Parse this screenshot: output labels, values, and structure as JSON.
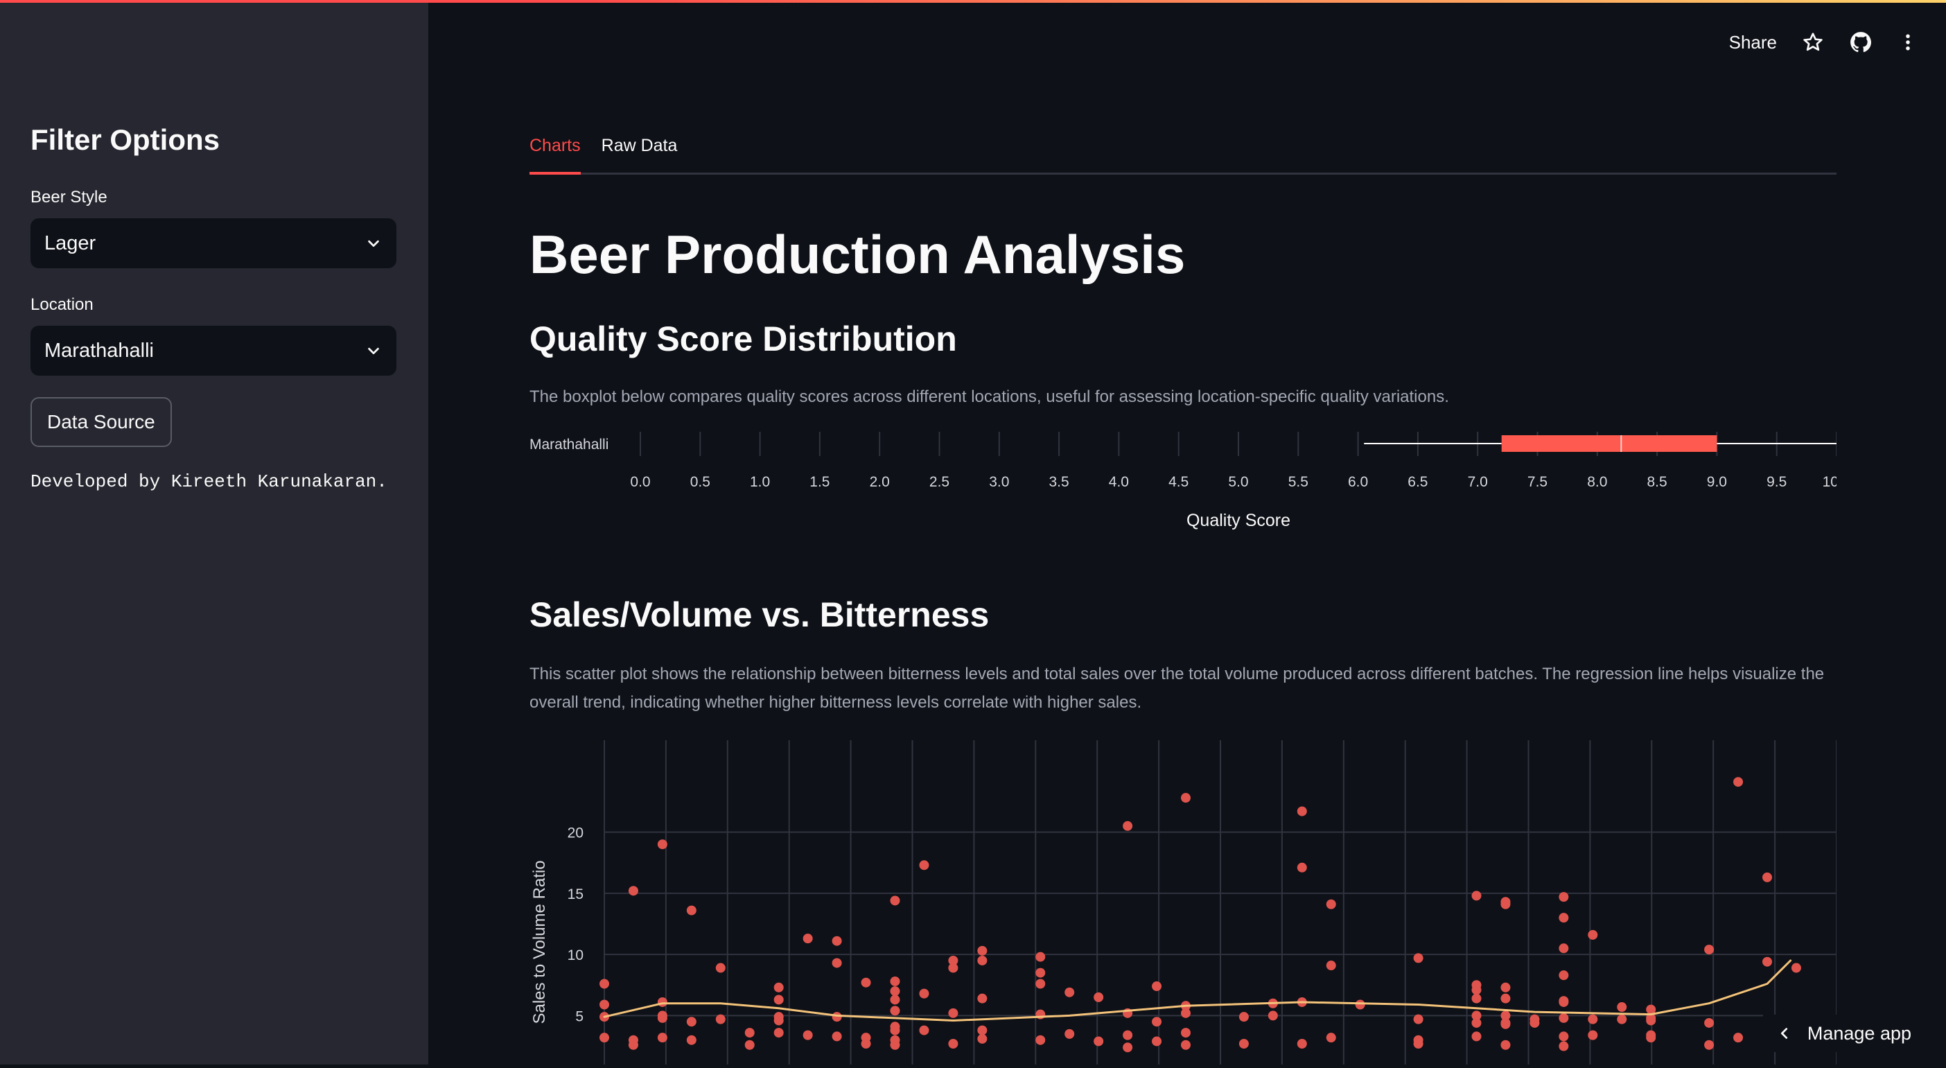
{
  "sidebar": {
    "title": "Filter Options",
    "beer_style_label": "Beer Style",
    "beer_style_value": "Lager",
    "location_label": "Location",
    "location_value": "Marathahalli",
    "data_source_button": "Data Source",
    "developer_note": "Developed by Kireeth Karunakaran."
  },
  "header": {
    "share_label": "Share",
    "icons": [
      "star-icon",
      "github-icon",
      "more-vert-icon"
    ]
  },
  "tabs": [
    {
      "label": "Charts",
      "active": true
    },
    {
      "label": "Raw Data",
      "active": false
    }
  ],
  "main": {
    "title": "Beer Production Analysis",
    "quality_section_title": "Quality Score Distribution",
    "quality_caption": "The boxplot below compares quality scores across different locations, useful for assessing location-specific quality variations.",
    "scatter_section_title": "Sales/Volume vs. Bitterness",
    "scatter_caption": "This scatter plot shows the relationship between bitterness levels and total sales over the total volume produced across different batches. The regression line helps visualize the overall trend, indicating whether higher bitterness levels correlate with higher sales."
  },
  "footer": {
    "manage_label": "Manage app"
  },
  "colors": {
    "accent": "#ff4b4b",
    "box_fill": "#ff5a4f",
    "point": "#e0544e",
    "trend": "#f4c37a",
    "grid": "#31333f"
  },
  "chart_data": [
    {
      "type": "box",
      "category": "Marathahalli",
      "xlabel": "Quality Score",
      "xlim": [
        0,
        10
      ],
      "xticks": [
        0,
        0.5,
        1,
        1.5,
        2,
        2.5,
        3,
        3.5,
        4,
        4.5,
        5,
        5.5,
        6,
        6.5,
        7,
        7.5,
        8,
        8.5,
        9,
        9.5,
        10
      ],
      "xtick_labels": [
        "0.0",
        "0.5",
        "1.0",
        "1.5",
        "2.0",
        "2.5",
        "3.0",
        "3.5",
        "4.0",
        "4.5",
        "5.0",
        "5.5",
        "6.0",
        "6.5",
        "7.0",
        "7.5",
        "8.0",
        "8.5",
        "9.0",
        "9.5",
        "10.0"
      ],
      "whisker_low": 6.05,
      "q1": 7.2,
      "median": 8.2,
      "q3": 9.0,
      "whisker_high": 10.0
    },
    {
      "type": "scatter",
      "ylabel": "Sales to Volume Ratio",
      "ylim": [
        1,
        24
      ],
      "yticks": [
        5,
        10,
        15,
        20
      ],
      "xlim": [
        0,
        20
      ],
      "x_gridlines": 21,
      "points": [
        [
          0,
          7.6
        ],
        [
          0,
          5.9
        ],
        [
          0,
          4.9
        ],
        [
          0,
          3.2
        ],
        [
          0.5,
          15.2
        ],
        [
          0.5,
          3.0
        ],
        [
          0.5,
          2.6
        ],
        [
          1,
          19.0
        ],
        [
          1,
          6.1
        ],
        [
          1,
          5.0
        ],
        [
          1,
          4.8
        ],
        [
          1,
          3.2
        ],
        [
          1.5,
          13.6
        ],
        [
          1.5,
          4.5
        ],
        [
          1.5,
          3.0
        ],
        [
          2,
          8.9
        ],
        [
          2,
          4.7
        ],
        [
          2.5,
          3.6
        ],
        [
          2.5,
          2.6
        ],
        [
          3,
          7.3
        ],
        [
          3,
          6.3
        ],
        [
          3,
          4.9
        ],
        [
          3,
          4.6
        ],
        [
          3,
          3.6
        ],
        [
          3.5,
          11.3
        ],
        [
          3.5,
          3.4
        ],
        [
          4,
          11.1
        ],
        [
          4,
          9.3
        ],
        [
          4,
          4.9
        ],
        [
          4,
          3.3
        ],
        [
          4.5,
          7.7
        ],
        [
          4.5,
          3.2
        ],
        [
          4.5,
          2.7
        ],
        [
          5,
          14.4
        ],
        [
          5,
          7.8
        ],
        [
          5,
          7.0
        ],
        [
          5,
          6.3
        ],
        [
          5,
          5.4
        ],
        [
          5,
          4.1
        ],
        [
          5,
          3.8
        ],
        [
          5,
          3.0
        ],
        [
          5,
          2.6
        ],
        [
          5.5,
          17.3
        ],
        [
          5.5,
          6.8
        ],
        [
          5.5,
          3.8
        ],
        [
          6,
          9.5
        ],
        [
          6,
          8.9
        ],
        [
          6,
          5.2
        ],
        [
          6,
          2.7
        ],
        [
          6.5,
          10.3
        ],
        [
          6.5,
          9.5
        ],
        [
          6.5,
          6.4
        ],
        [
          6.5,
          3.8
        ],
        [
          6.5,
          3.1
        ],
        [
          7.5,
          9.8
        ],
        [
          7.5,
          8.5
        ],
        [
          7.5,
          7.6
        ],
        [
          7.5,
          5.1
        ],
        [
          7.5,
          3.0
        ],
        [
          8,
          6.9
        ],
        [
          8,
          3.5
        ],
        [
          8.5,
          6.5
        ],
        [
          8.5,
          2.9
        ],
        [
          9,
          20.5
        ],
        [
          9,
          5.2
        ],
        [
          9,
          3.4
        ],
        [
          9,
          2.4
        ],
        [
          9.5,
          7.4
        ],
        [
          9.5,
          4.5
        ],
        [
          9.5,
          2.9
        ],
        [
          10,
          22.8
        ],
        [
          10,
          5.8
        ],
        [
          10,
          5.2
        ],
        [
          10,
          3.6
        ],
        [
          10,
          2.6
        ],
        [
          11,
          4.9
        ],
        [
          11,
          2.7
        ],
        [
          11.5,
          6.0
        ],
        [
          11.5,
          5.0
        ],
        [
          12,
          21.7
        ],
        [
          12,
          17.1
        ],
        [
          12,
          6.1
        ],
        [
          12,
          2.7
        ],
        [
          12.5,
          14.1
        ],
        [
          12.5,
          9.1
        ],
        [
          12.5,
          3.2
        ],
        [
          13,
          5.9
        ],
        [
          14,
          9.7
        ],
        [
          14,
          4.7
        ],
        [
          14,
          3.0
        ],
        [
          14,
          2.7
        ],
        [
          15,
          14.8
        ],
        [
          15,
          7.5
        ],
        [
          15,
          7.1
        ],
        [
          15,
          6.4
        ],
        [
          15,
          5.0
        ],
        [
          15,
          4.4
        ],
        [
          15,
          3.3
        ],
        [
          15.5,
          14.3
        ],
        [
          15.5,
          14.1
        ],
        [
          15.5,
          7.3
        ],
        [
          15.5,
          6.4
        ],
        [
          15.5,
          5.0
        ],
        [
          15.5,
          4.4
        ],
        [
          15.5,
          4.3
        ],
        [
          15.5,
          2.6
        ],
        [
          16,
          4.7
        ],
        [
          16,
          4.4
        ],
        [
          16.5,
          14.7
        ],
        [
          16.5,
          13.0
        ],
        [
          16.5,
          10.5
        ],
        [
          16.5,
          8.3
        ],
        [
          16.5,
          6.2
        ],
        [
          16.5,
          6.1
        ],
        [
          16.5,
          4.8
        ],
        [
          16.5,
          3.3
        ],
        [
          16.5,
          2.5
        ],
        [
          17,
          11.6
        ],
        [
          17,
          4.7
        ],
        [
          17,
          3.4
        ],
        [
          17.5,
          5.7
        ],
        [
          17.5,
          4.7
        ],
        [
          18,
          5.5
        ],
        [
          18,
          4.8
        ],
        [
          18,
          4.6
        ],
        [
          18,
          3.4
        ],
        [
          18,
          3.2
        ],
        [
          19,
          10.4
        ],
        [
          19,
          4.4
        ],
        [
          19,
          2.6
        ],
        [
          19.5,
          24.1
        ],
        [
          19.5,
          3.2
        ],
        [
          20,
          16.3
        ],
        [
          20,
          9.4
        ],
        [
          20.5,
          8.9
        ]
      ],
      "trend": [
        [
          0,
          4.9
        ],
        [
          1,
          6.0
        ],
        [
          2,
          6.0
        ],
        [
          3,
          5.6
        ],
        [
          4,
          5.0
        ],
        [
          6,
          4.6
        ],
        [
          8,
          5.0
        ],
        [
          10,
          5.8
        ],
        [
          12,
          6.1
        ],
        [
          14,
          5.9
        ],
        [
          16,
          5.3
        ],
        [
          18,
          5.1
        ],
        [
          19,
          6.0
        ],
        [
          20,
          7.6
        ],
        [
          20.4,
          9.5
        ]
      ]
    }
  ]
}
